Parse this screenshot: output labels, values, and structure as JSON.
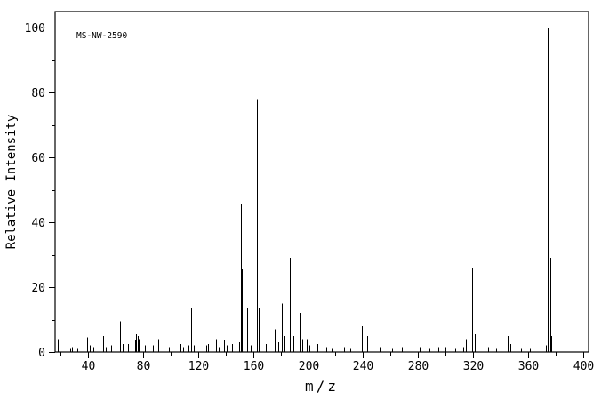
{
  "chart_data": {
    "type": "bar",
    "subtype": "mass-spectrum-stick-plot",
    "title": "MS-NW-2590",
    "xlabel": "m/z",
    "ylabel": "Relative Intensity",
    "xlim": [
      16,
      404
    ],
    "ylim": [
      0,
      105
    ],
    "x_major_ticks": [
      40,
      80,
      120,
      160,
      200,
      240,
      280,
      320,
      360,
      400
    ],
    "x_minor_step": 20,
    "y_major_ticks": [
      0,
      20,
      40,
      60,
      80,
      100
    ],
    "y_minor_step": 10,
    "grid": "off",
    "legend": "none",
    "line_color": "#000000",
    "text_color": "#000000",
    "background": "#ffffff",
    "peaks": [
      [
        18,
        4
      ],
      [
        27,
        1
      ],
      [
        28,
        1.5
      ],
      [
        32,
        1
      ],
      [
        39,
        4.5
      ],
      [
        41,
        2
      ],
      [
        44,
        1.5
      ],
      [
        51,
        5
      ],
      [
        53,
        1.5
      ],
      [
        57,
        2
      ],
      [
        63,
        9.5
      ],
      [
        65,
        2.5
      ],
      [
        69,
        2.5
      ],
      [
        74,
        3.5
      ],
      [
        75,
        5.5
      ],
      [
        76,
        5
      ],
      [
        77,
        4
      ],
      [
        81,
        2
      ],
      [
        83,
        1.5
      ],
      [
        87,
        2
      ],
      [
        89,
        4.5
      ],
      [
        91,
        4
      ],
      [
        95,
        3.5
      ],
      [
        99,
        1.5
      ],
      [
        101,
        1.5
      ],
      [
        107,
        2.5
      ],
      [
        109,
        1.5
      ],
      [
        113,
        2
      ],
      [
        115,
        13.5
      ],
      [
        117,
        2
      ],
      [
        126,
        2
      ],
      [
        127,
        2.5
      ],
      [
        133,
        4
      ],
      [
        135,
        1.5
      ],
      [
        139,
        3.5
      ],
      [
        141,
        2
      ],
      [
        145,
        2.5
      ],
      [
        150,
        3
      ],
      [
        151,
        45.5
      ],
      [
        152,
        25.5
      ],
      [
        156,
        13.5
      ],
      [
        158,
        2
      ],
      [
        163,
        78
      ],
      [
        164,
        13.5
      ],
      [
        165,
        5
      ],
      [
        169,
        2.5
      ],
      [
        176,
        7
      ],
      [
        178,
        3
      ],
      [
        181,
        15
      ],
      [
        183,
        5
      ],
      [
        187,
        29
      ],
      [
        189,
        5
      ],
      [
        194,
        12
      ],
      [
        196,
        4
      ],
      [
        199,
        4
      ],
      [
        201,
        2
      ],
      [
        207,
        2.5
      ],
      [
        213,
        1.5
      ],
      [
        217,
        1
      ],
      [
        226,
        1.5
      ],
      [
        231,
        1
      ],
      [
        239,
        8
      ],
      [
        241,
        31.5
      ],
      [
        243,
        5
      ],
      [
        252,
        1.5
      ],
      [
        261,
        1
      ],
      [
        268,
        1.5
      ],
      [
        276,
        1
      ],
      [
        281,
        1.5
      ],
      [
        288,
        1
      ],
      [
        295,
        1.5
      ],
      [
        300,
        1.5
      ],
      [
        307,
        1
      ],
      [
        313,
        1.5
      ],
      [
        315,
        4
      ],
      [
        317,
        31
      ],
      [
        319,
        26
      ],
      [
        321,
        5.5
      ],
      [
        331,
        1.5
      ],
      [
        337,
        1
      ],
      [
        345,
        5
      ],
      [
        347,
        2.5
      ],
      [
        355,
        1
      ],
      [
        361,
        1
      ],
      [
        373,
        2
      ],
      [
        374,
        100
      ],
      [
        376,
        29
      ],
      [
        377,
        5
      ]
    ]
  }
}
